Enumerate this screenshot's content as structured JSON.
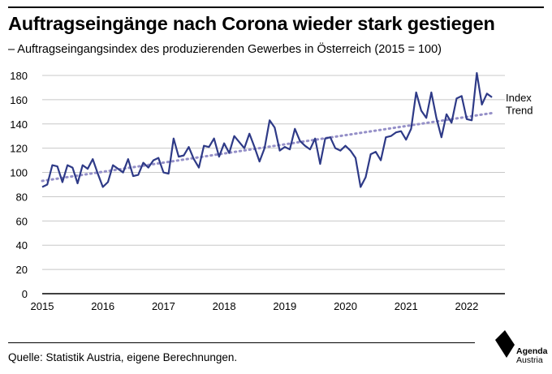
{
  "title": "Auftragseingänge nach Corona wieder stark gestiegen",
  "subtitle": "– Auftragseingangsindex des produzierenden Gewerbes in Österreich (2015 = 100)",
  "source": "Quelle: Statistik Austria, eigene Berechnungen.",
  "logo": {
    "line1": "Agenda",
    "line2": "Austria"
  },
  "colors": {
    "index": "#2e3a87",
    "trend": "#9590c8",
    "axis": "#000000",
    "grid": "#c8c8c8"
  },
  "chart_data": {
    "type": "line",
    "title": "Auftragseingänge nach Corona wieder stark gestiegen",
    "xlabel": "",
    "ylabel": "",
    "ylim": [
      0,
      180
    ],
    "yticks": [
      0,
      20,
      40,
      60,
      80,
      100,
      120,
      140,
      160,
      180
    ],
    "xlim": [
      2015,
      2022.63
    ],
    "xticks": [
      2015,
      2016,
      2017,
      2018,
      2019,
      2020,
      2021,
      2022
    ],
    "xtick_labels": [
      "2015",
      "2016",
      "2017",
      "2018",
      "2019",
      "2020",
      "2021",
      "2022"
    ],
    "grid": "horizontal",
    "legend": "direct labels at right end of lines",
    "series": [
      {
        "name": "Index",
        "style": "solid",
        "x_start": 2015.0,
        "x_step": 0.083333,
        "values": [
          88,
          90,
          106,
          105,
          92,
          106,
          104,
          91,
          106,
          103,
          111,
          99,
          88,
          92,
          106,
          103,
          100,
          111,
          97,
          98,
          108,
          104,
          110,
          112,
          100,
          99,
          128,
          113,
          114,
          121,
          111,
          104,
          122,
          121,
          128,
          113,
          124,
          116,
          130,
          125,
          120,
          132,
          121,
          109,
          120,
          143,
          137,
          118,
          121,
          119,
          136,
          126,
          122,
          119,
          128,
          107,
          128,
          129,
          120,
          118,
          122,
          118,
          112,
          88,
          96,
          115,
          117,
          110,
          129,
          130,
          133,
          134,
          127,
          136,
          166,
          151,
          145,
          166,
          145,
          129,
          148,
          141,
          161,
          163,
          144,
          143,
          182,
          156,
          165,
          162
        ]
      },
      {
        "name": "Trend",
        "style": "dotted",
        "x": [
          2015.0,
          2022.42
        ],
        "values": [
          93,
          149
        ]
      }
    ]
  }
}
